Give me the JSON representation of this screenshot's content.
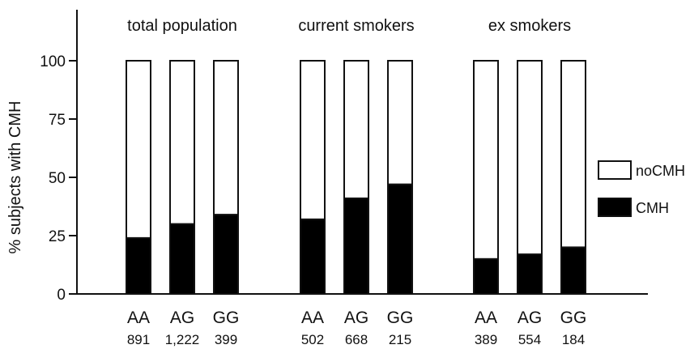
{
  "chart_data": {
    "type": "bar",
    "stacked": true,
    "ylabel": "% subjects with CMH",
    "ylim": [
      0,
      120
    ],
    "yticks": [
      0,
      25,
      50,
      75,
      100
    ],
    "groups": [
      {
        "title": "total population",
        "categories": [
          "AA",
          "AG",
          "GG"
        ],
        "counts": [
          "891",
          "1,222",
          "399"
        ],
        "CMH": [
          24,
          30,
          34
        ]
      },
      {
        "title": "current smokers",
        "categories": [
          "AA",
          "AG",
          "GG"
        ],
        "counts": [
          "502",
          "668",
          "215"
        ],
        "CMH": [
          32,
          41,
          47
        ]
      },
      {
        "title": "ex smokers",
        "categories": [
          "AA",
          "AG",
          "GG"
        ],
        "counts": [
          "389",
          "554",
          "184"
        ],
        "CMH": [
          15,
          17,
          20
        ]
      }
    ],
    "series": [
      {
        "name": "noCMH",
        "color": "#ffffff"
      },
      {
        "name": "CMH",
        "color": "#000000"
      }
    ],
    "legend_position": "right"
  }
}
